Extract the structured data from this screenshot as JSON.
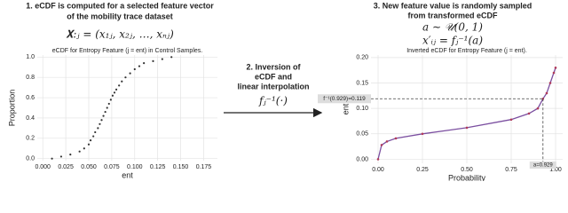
{
  "steps": [
    {
      "title_lines": [
        "1. eCDF is computed for a selected feature vector",
        "of the mobility trace dataset"
      ],
      "formulas": [
        "𝐗:ⱼ = (x₁ⱼ, x₂ⱼ, …, xₙⱼ)"
      ]
    },
    {
      "title_lines": [
        "2. Inversion of",
        "eCDF and",
        "linear interpolation"
      ],
      "formulas": [
        "fⱼ⁻¹(·)"
      ]
    },
    {
      "title_lines": [
        "3. New feature value is randomly sampled",
        "from transformed eCDF"
      ],
      "formulas": [
        "a ∼ 𝒰(0, 1)",
        "x′ᵢⱼ = fⱼ⁻¹(a)"
      ]
    }
  ],
  "chart_data": [
    {
      "type": "scatter",
      "title": "eCDF for Entropy Feature (j = ent) in Control Samples.",
      "x_label": "ent",
      "y_label": "Proportion",
      "color": "#333333",
      "grid": true,
      "x": [
        0.01,
        0.02,
        0.03,
        0.04,
        0.045,
        0.05,
        0.052,
        0.055,
        0.057,
        0.06,
        0.062,
        0.064,
        0.066,
        0.068,
        0.07,
        0.072,
        0.074,
        0.076,
        0.078,
        0.08,
        0.083,
        0.086,
        0.09,
        0.095,
        0.1,
        0.105,
        0.11,
        0.12,
        0.13,
        0.14
      ],
      "values": [
        0.0,
        0.02,
        0.04,
        0.07,
        0.1,
        0.14,
        0.18,
        0.22,
        0.26,
        0.3,
        0.34,
        0.38,
        0.42,
        0.46,
        0.5,
        0.54,
        0.58,
        0.62,
        0.65,
        0.68,
        0.72,
        0.76,
        0.8,
        0.84,
        0.88,
        0.91,
        0.94,
        0.96,
        0.98,
        1.0
      ],
      "xlim": [
        -0.006,
        0.19
      ],
      "ylim": [
        -0.02,
        1.02
      ],
      "xticks": [
        {
          "value": 0,
          "label": "0.000"
        },
        0.025,
        {
          "value": 0.05,
          "label": "0.050"
        },
        0.075,
        {
          "value": 0.1,
          "label": "0.100"
        },
        0.125,
        {
          "value": 0.15,
          "label": "0.150"
        },
        0.175
      ],
      "yticks": [
        {
          "value": 0,
          "label": "0.0"
        },
        0.2,
        0.4,
        0.6,
        0.8,
        {
          "value": 1,
          "label": "1.0"
        }
      ]
    },
    {
      "type": "line",
      "title": "Inverted eCDF for Entropy Feature (j = ent).",
      "x_label": "Probability",
      "y_label": "ent",
      "color": "#b03a5a",
      "grid": true,
      "x": [
        0,
        0.02,
        0.05,
        0.1,
        0.25,
        0.5,
        0.75,
        0.85,
        0.9,
        0.929,
        0.95,
        0.97,
        0.99,
        1
      ],
      "values": [
        0.0,
        0.028,
        0.035,
        0.041,
        0.05,
        0.062,
        0.078,
        0.09,
        0.1,
        0.119,
        0.13,
        0.15,
        0.17,
        0.18
      ],
      "xlim": [
        -0.04,
        1.04
      ],
      "ylim": [
        -0.008,
        0.205
      ],
      "xticks": [
        {
          "value": 0,
          "label": "0.00"
        },
        0.25,
        {
          "value": 0.5,
          "label": "0.50"
        },
        0.75,
        {
          "value": 1,
          "label": "1.00"
        }
      ],
      "yticks": [
        {
          "value": 0,
          "label": "0.00"
        },
        0.05,
        {
          "value": 0.1,
          "label": "0.10"
        },
        0.15,
        {
          "value": 0.2,
          "label": "0.20"
        }
      ],
      "annotations": [
        {
          "text": "f⁻¹(0.929)=0.119",
          "x": 0.929,
          "y": 0.119
        },
        {
          "text": "a=0.929",
          "x": 0.929,
          "y": 0.119
        }
      ]
    }
  ]
}
